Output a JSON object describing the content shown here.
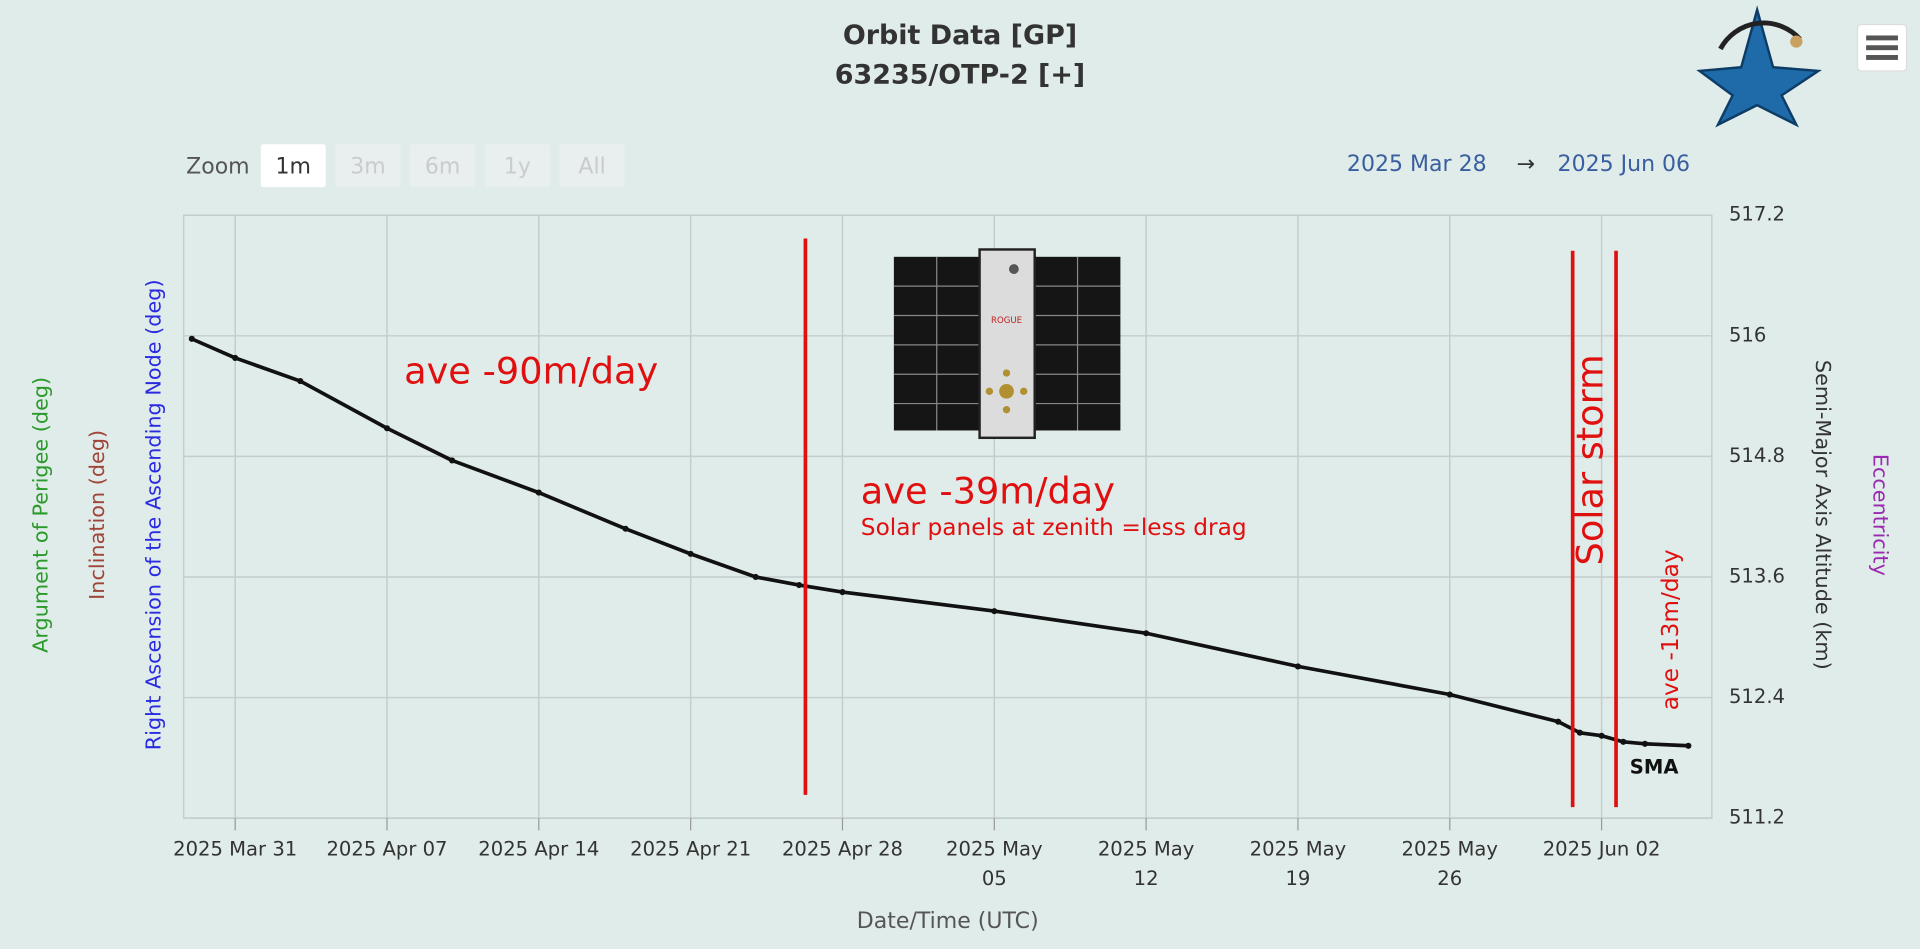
{
  "chart_data": {
    "type": "line",
    "title": "Orbit Data [GP]",
    "subtitle": "63235/OTP-2 [+]",
    "zoom": {
      "label": "Zoom",
      "buttons": [
        "1m",
        "3m",
        "6m",
        "1y",
        "All"
      ],
      "active": "1m"
    },
    "range": {
      "from": "2025 Mar 28",
      "arrow": "→",
      "to": "2025 Jun 06"
    },
    "x_label": "Date/Time (UTC)",
    "y_label": "Semi-Major Axis Altitude (km)",
    "left_axis_titles": [
      {
        "text": "Right Ascension of the Ascending Node (deg)",
        "color": "#2a2ae0"
      },
      {
        "text": "Inclination (deg)",
        "color": "#a0453a"
      },
      {
        "text": "Argument of Perigee (deg)",
        "color": "#2a9a2a"
      }
    ],
    "right_axis_title2": {
      "text": "Eccentricity",
      "color": "#9a2ab0"
    },
    "xlim": [
      "2025-03-28T15:00Z",
      "2025-06-07T02:00Z"
    ],
    "xticks": [
      {
        "value": "2025-03-31",
        "label": [
          "2025 Mar 31"
        ]
      },
      {
        "value": "2025-04-07",
        "label": [
          "2025 Apr 07"
        ]
      },
      {
        "value": "2025-04-14",
        "label": [
          "2025 Apr 14"
        ]
      },
      {
        "value": "2025-04-21",
        "label": [
          "2025 Apr 21"
        ]
      },
      {
        "value": "2025-04-28",
        "label": [
          "2025 Apr 28"
        ]
      },
      {
        "value": "2025-05-05",
        "label": [
          "2025 May",
          "05"
        ]
      },
      {
        "value": "2025-05-12",
        "label": [
          "2025 May",
          "12"
        ]
      },
      {
        "value": "2025-05-19",
        "label": [
          "2025 May",
          "19"
        ]
      },
      {
        "value": "2025-05-26",
        "label": [
          "2025 May",
          "26"
        ]
      },
      {
        "value": "2025-06-02",
        "label": [
          "2025 Jun 02"
        ]
      }
    ],
    "ylim": [
      511.2,
      517.2
    ],
    "yticks": [
      511.2,
      512.4,
      513.6,
      514.8,
      516,
      517.2
    ],
    "grid": true,
    "x": [
      "2025-03-29",
      "2025-03-31",
      "2025-04-03",
      "2025-04-07",
      "2025-04-10",
      "2025-04-14",
      "2025-04-18",
      "2025-04-21",
      "2025-04-24",
      "2025-04-26",
      "2025-04-28",
      "2025-05-05",
      "2025-05-12",
      "2025-05-19",
      "2025-05-26",
      "2025-05-31",
      "2025-06-01",
      "2025-06-02",
      "2025-06-03",
      "2025-06-04",
      "2025-06-06"
    ],
    "series": [
      {
        "name": "SMA",
        "color": "#111111",
        "values": [
          515.97,
          515.78,
          515.55,
          515.08,
          514.76,
          514.44,
          514.08,
          513.83,
          513.6,
          513.52,
          513.45,
          513.26,
          513.04,
          512.71,
          512.43,
          512.16,
          512.05,
          512.02,
          511.96,
          511.94,
          511.92
        ]
      }
    ],
    "vlines": {
      "color": "#e01010",
      "x": [
        "2025-04-26T07:00Z",
        "2025-05-31T16:00Z",
        "2025-06-02T16:00Z"
      ]
    },
    "annotations": [
      "ave -90m/day",
      "ave -39m/day",
      "Solar panels at zenith =less drag",
      "Solar storm",
      "ave -13m/day"
    ]
  }
}
